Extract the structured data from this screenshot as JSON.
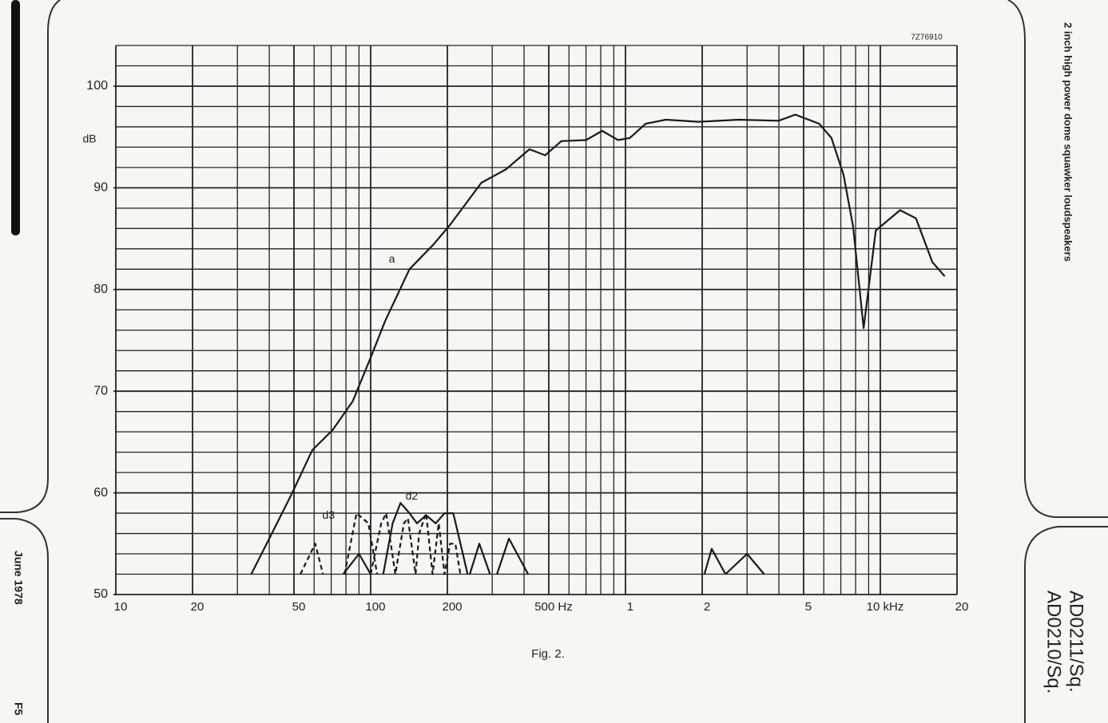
{
  "page": {
    "side_title": "2 inch high power dome squawker loudspeakers",
    "date": "June 1978",
    "page_no": "F5",
    "types": [
      "AD0210/Sq.",
      "AD0211/Sq."
    ]
  },
  "chart_data": {
    "type": "line",
    "code": "7Z76910",
    "figure_label": "Fig. 2.",
    "y_label": "dB",
    "xscale": "log",
    "xlim": [
      10,
      20000
    ],
    "ylim": [
      50,
      104
    ],
    "grid": true,
    "color": "#1a1a1a",
    "xticks": [
      10,
      20,
      50,
      100,
      200,
      {
        "value": 500,
        "label": "500 Hz"
      },
      {
        "value": 1000,
        "label": "1"
      },
      {
        "value": 2000,
        "label": "2"
      },
      {
        "value": 5000,
        "label": "5"
      },
      {
        "value": 10000,
        "label": "10 kHz"
      },
      {
        "value": 20000,
        "label": "20"
      }
    ],
    "yticks": [
      50,
      60,
      70,
      80,
      90,
      100
    ],
    "minor_xgrid": [
      30,
      40,
      60,
      70,
      80,
      90,
      300,
      400,
      600,
      700,
      800,
      900,
      3000,
      4000,
      6000,
      7000,
      8000,
      9000
    ],
    "minor_ygrid": [
      52,
      54,
      56,
      58,
      62,
      64,
      66,
      68,
      72,
      74,
      76,
      78,
      82,
      84,
      86,
      88,
      92,
      94,
      96,
      98,
      102,
      104
    ],
    "series": [
      {
        "name": "a",
        "dashed": false,
        "x": [
          34,
          40,
          49,
          59,
          71,
          85,
          100,
          114,
          142,
          176,
          204,
          272,
          339,
          420,
          484,
          560,
          700,
          810,
          935,
          1040,
          1200,
          1440,
          1940,
          2780,
          3990,
          4640,
          5760,
          6430,
          7170,
          7820,
          8600,
          9600,
          11950,
          13800,
          16000,
          17900
        ],
        "values": [
          52,
          55.5,
          59.9,
          64.2,
          66.2,
          69,
          73.3,
          76.9,
          82,
          84.4,
          86.3,
          90.5,
          91.8,
          93.8,
          93.2,
          94.6,
          94.7,
          95.6,
          94.7,
          94.9,
          96.3,
          96.7,
          96.5,
          96.7,
          96.6,
          97.2,
          96.3,
          94.9,
          91.3,
          86.2,
          76.2,
          85.8,
          87.8,
          87,
          82.7,
          81.3
        ]
      },
      {
        "name": "d2",
        "dashed": false,
        "x": [
          78,
          90,
          100,
          null,
          112,
          122,
          131,
          142,
          152,
          165,
          180,
          195,
          211,
          230,
          240,
          null,
          245,
          267,
          294,
          null,
          313,
          349,
          415,
          null,
          2040,
          2180,
          2470,
          null,
          2470,
          3000,
          3500
        ],
        "values": [
          52,
          54,
          52,
          null,
          52,
          57,
          59,
          58,
          57,
          57.8,
          57,
          58,
          58,
          54,
          52,
          null,
          52,
          55,
          52,
          null,
          52,
          55.5,
          52,
          null,
          52,
          54.5,
          52,
          null,
          52,
          54,
          52
        ]
      },
      {
        "name": "d3",
        "dashed": true,
        "x": [
          53,
          60.6,
          65,
          null,
          79,
          88,
          98,
          106,
          null,
          100,
          110,
          115,
          125,
          135,
          140,
          150,
          155,
          165,
          175,
          185,
          195,
          205,
          215,
          225
        ],
        "values": [
          52,
          55,
          52,
          null,
          52,
          58,
          57,
          52,
          null,
          52,
          57,
          58,
          52,
          57,
          57.5,
          52,
          56,
          58,
          52,
          57,
          52,
          55,
          55,
          52
        ]
      }
    ]
  }
}
